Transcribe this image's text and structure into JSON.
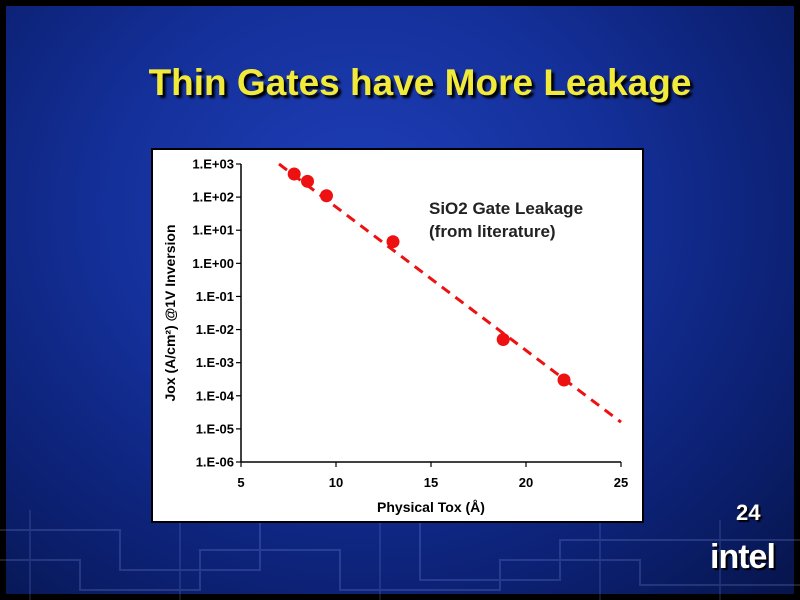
{
  "slide": {
    "title": "Thin Gates have More Leakage",
    "page_number": "24",
    "logo_text": "intel"
  },
  "colors": {
    "title": "#f2ea3a",
    "series": "#ee1111",
    "background": "#14309a"
  },
  "chart_data": {
    "type": "scatter",
    "title": "",
    "xlabel": "Physical Tox (Å)",
    "ylabel": "Jox (A/cm²) @1V Inversion",
    "xlim": [
      5,
      25
    ],
    "ylim": [
      1e-06,
      1000
    ],
    "y_scale": "log",
    "x_ticks": [
      5,
      10,
      15,
      20,
      25
    ],
    "x_tick_labels": [
      "5",
      "10",
      "15",
      "20",
      "25"
    ],
    "y_ticks": [
      1000,
      100,
      10,
      1,
      0.1,
      0.01,
      0.001,
      0.0001,
      1e-05,
      1e-06
    ],
    "y_tick_labels": [
      "1.E+03",
      "1.E+02",
      "1.E+01",
      "1.E+00",
      "1.E-01",
      "1.E-02",
      "1.E-03",
      "1.E-04",
      "1.E-05",
      "1.E-06"
    ],
    "grid": false,
    "annotation": [
      "SiO2 Gate Leakage",
      "(from literature)"
    ],
    "series": [
      {
        "type": "scatter",
        "x": [
          7.8,
          8.5,
          9.5,
          13.0,
          18.8,
          22.0
        ],
        "y": [
          500,
          300,
          110,
          4.5,
          0.005,
          0.0003
        ]
      },
      {
        "type": "line",
        "style": "dashed",
        "x": [
          7.0,
          25.0
        ],
        "y": [
          1000,
          1.6e-05
        ]
      }
    ]
  }
}
